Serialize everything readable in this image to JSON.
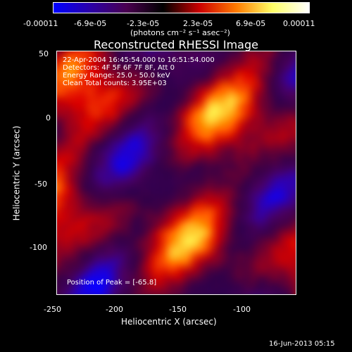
{
  "colorbar": {
    "tick_labels": [
      "-0.00011",
      "-6.9e-05",
      "-2.3e-05",
      "2.3e-05",
      "6.9e-05",
      "0.00011"
    ],
    "units_label": "(photons cm⁻² s⁻¹ asec⁻²)"
  },
  "plot": {
    "title": "Reconstructed RHESSI Image",
    "xlabel": "Heliocentric X (arcsec)",
    "ylabel": "Heliocentric Y (arcsec)",
    "annotations": {
      "time": "22-Apr-2004 16:45:54.000 to 16:51:54.000",
      "detectors": "Detectors: 4F 5F 6F 7F 8F, Att 0",
      "energy": "Energy Range: 25.0 - 50.0 keV",
      "clean": "Clean     Total counts: 3.95E+03",
      "peak": "Position of Peak = [-65.8]"
    },
    "footer_timestamp": "16-Jun-2013 05:15"
  },
  "chart_data": {
    "type": "heatmap",
    "title": "Reconstructed RHESSI Image",
    "xlabel": "Heliocentric X (arcsec)",
    "ylabel": "Heliocentric Y (arcsec)",
    "x_ticks": [
      -250,
      -200,
      -150,
      -100
    ],
    "y_ticks": [
      50,
      0,
      -50,
      -100
    ],
    "xlim": [
      -256,
      -60
    ],
    "ylim": [
      -138,
      53
    ],
    "colorbar": {
      "min": -0.00011,
      "max": 0.00011,
      "ticks": [
        "-0.00011",
        "-6.9e-05",
        "-2.3e-05",
        "2.3e-05",
        "6.9e-05",
        "0.00011"
      ],
      "colors": [
        "#0000ff",
        "#2b00a8",
        "#4a0050",
        "#000000",
        "#cc0000",
        "#ff7a00",
        "#ffff66",
        "#ffffff"
      ]
    }
  }
}
